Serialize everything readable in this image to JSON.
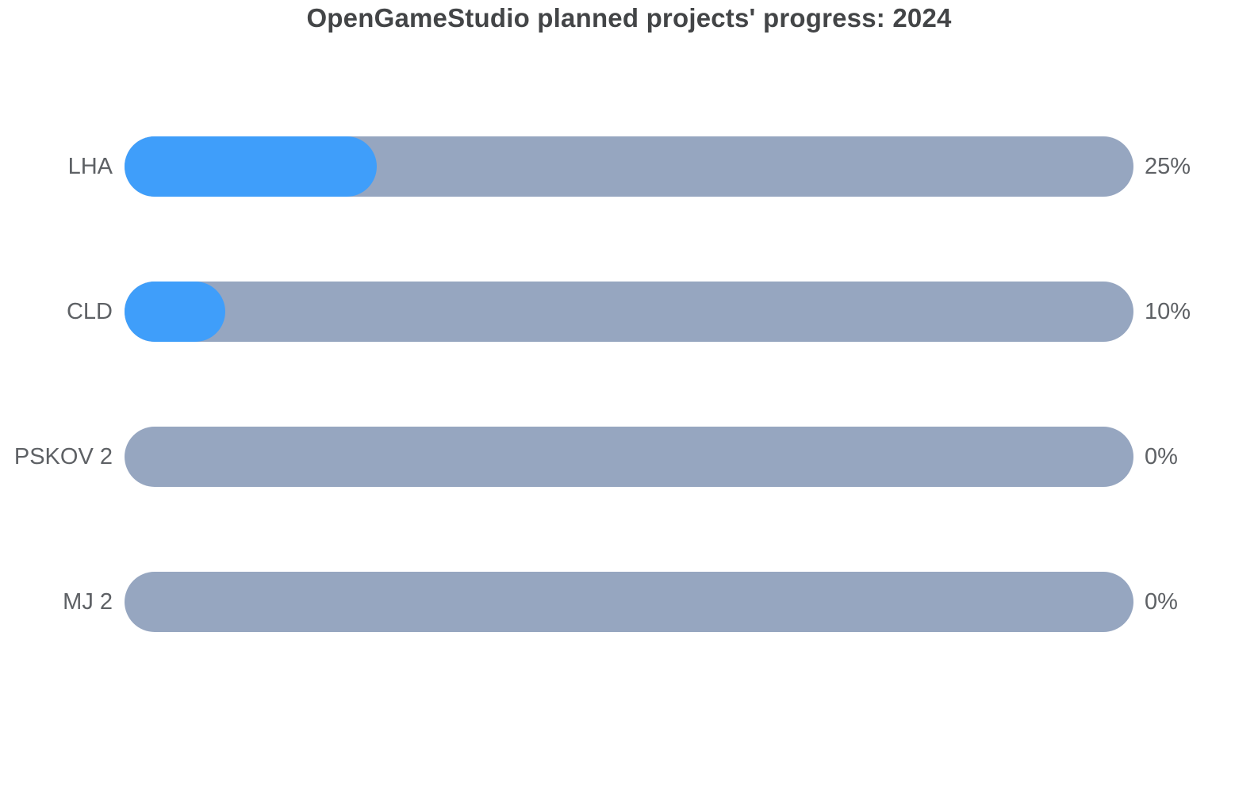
{
  "title": "OpenGameStudio planned projects' progress: 2024",
  "colors": {
    "fill": "#3F9EFA",
    "track": "#96A6C0",
    "title_text": "#434547",
    "label_text": "#5E6165",
    "background": "#FFFFFF"
  },
  "chart_data": {
    "type": "bar",
    "orientation": "horizontal",
    "title": "OpenGameStudio planned projects' progress: 2024",
    "categories": [
      "LHA",
      "CLD",
      "PSKOV 2",
      "MJ 2"
    ],
    "values": [
      25,
      10,
      0,
      0
    ],
    "value_labels": [
      "25%",
      "10%",
      "0%",
      "0%"
    ],
    "unit": "%",
    "xlim": [
      0,
      100
    ],
    "grid": false,
    "legend": false,
    "bar_color": "#3F9EFA",
    "track_color": "#96A6C0",
    "value_label_position": "right-of-bar",
    "category_label_position": "left-of-bar"
  }
}
